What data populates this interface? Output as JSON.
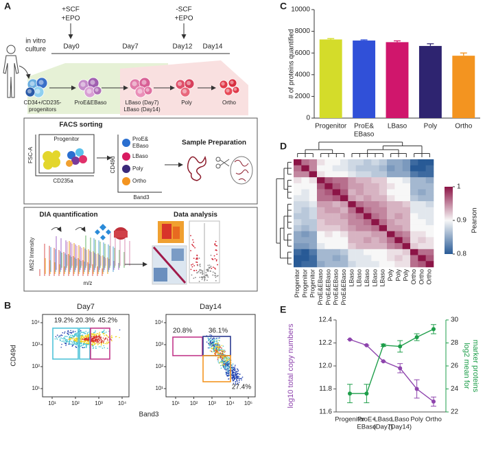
{
  "panel_labels": [
    "A",
    "B",
    "C",
    "D",
    "E"
  ],
  "diagram": {
    "stage1": [
      "+SCF",
      "+EPO"
    ],
    "stage2": [
      "-SCF",
      "+EPO"
    ],
    "culture": [
      "in vitro",
      "culture"
    ],
    "days": [
      "Day0",
      "Day7",
      "Day12",
      "Day14"
    ],
    "cells": {
      "progenitor": [
        "CD34+/CD235-",
        "progenitors"
      ],
      "proe": "ProE&EBaso",
      "lbaso": [
        "LBaso (Day7)",
        "LBaso (Day14)"
      ],
      "poly": "Poly",
      "ortho": "Ortho"
    },
    "facs": {
      "title": "FACS sorting",
      "gate": "Progenitor",
      "x_axis": "CD235a",
      "y_axis": "FSC-A",
      "sorted_x": "Band3",
      "sorted_y": "CD49d",
      "populations": [
        "ProE&",
        "EBaso",
        "LBaso",
        "Poly",
        "Ortho"
      ]
    },
    "prep": "Sample Preparation",
    "dia": {
      "title": "DIA quantification",
      "y_axis": "MS2 Intensity",
      "x_axis": "m/z"
    },
    "analysis": "Data analysis"
  },
  "flow": {
    "y_axis": "CD49d",
    "x_axis": "Band3",
    "panels": [
      {
        "title": "Day7",
        "xticks": [
          "10¹",
          "10²",
          "10³",
          "10⁴"
        ],
        "yticks": [
          "10¹",
          "10²",
          "10³",
          "10⁴"
        ],
        "gates": [
          "19.2%",
          "20.3%",
          "45.2%"
        ]
      },
      {
        "title": "Day14",
        "xticks": [
          "10¹",
          "10²",
          "10³",
          "10⁴",
          "10⁵"
        ],
        "yticks": [
          "10¹",
          "10²",
          "10³",
          "10⁴"
        ],
        "gates": [
          "20.8%",
          "36.1%",
          "27.4%"
        ]
      }
    ]
  },
  "chart_data": [
    {
      "type": "bar",
      "ylabel": "# of proteins quantified",
      "categories": [
        [
          "Progenitor"
        ],
        [
          "ProE&",
          "EBaso"
        ],
        [
          "LBaso"
        ],
        [
          "Poly"
        ],
        [
          "Ortho"
        ]
      ],
      "values": [
        7250,
        7150,
        7000,
        6650,
        5750
      ],
      "errors": [
        80,
        60,
        120,
        200,
        250
      ],
      "colors": [
        "#d4dc2a",
        "#3050d8",
        "#d0166c",
        "#2e2470",
        "#f39420"
      ],
      "ylim": [
        0,
        10000
      ],
      "yticks": [
        0,
        2000,
        4000,
        6000,
        8000,
        10000
      ]
    },
    {
      "type": "heatmap",
      "colorbar_label": "Pearson",
      "labels": [
        "Progenitor",
        "Progenitor",
        "Progenitor",
        "ProE&EBaso",
        "ProE&EBaso",
        "ProE&EBaso",
        "ProE&EBaso",
        "LBaso",
        "LBaso",
        "LBaso",
        "LBaso",
        "LBaso",
        "Poly",
        "Poly",
        "Poly",
        "Ortho",
        "Ortho",
        "Ortho"
      ],
      "clim": [
        0.8,
        1
      ],
      "cticks": [
        0.8,
        0.9,
        1
      ],
      "values": [
        [
          1,
          0.96,
          0.95,
          0.91,
          0.9,
          0.9,
          0.89,
          0.88,
          0.88,
          0.87,
          0.88,
          0.87,
          0.85,
          0.85,
          0.84,
          0.81,
          0.8,
          0.8
        ],
        [
          0.96,
          1,
          0.95,
          0.9,
          0.9,
          0.89,
          0.89,
          0.88,
          0.87,
          0.87,
          0.87,
          0.86,
          0.84,
          0.85,
          0.84,
          0.8,
          0.8,
          0.81
        ],
        [
          0.95,
          0.95,
          1,
          0.91,
          0.9,
          0.9,
          0.9,
          0.89,
          0.88,
          0.88,
          0.87,
          0.87,
          0.85,
          0.85,
          0.85,
          0.82,
          0.81,
          0.81
        ],
        [
          0.91,
          0.9,
          0.91,
          1,
          0.97,
          0.96,
          0.96,
          0.94,
          0.93,
          0.93,
          0.92,
          0.92,
          0.9,
          0.9,
          0.89,
          0.86,
          0.86,
          0.85
        ],
        [
          0.9,
          0.9,
          0.9,
          0.97,
          1,
          0.97,
          0.96,
          0.94,
          0.94,
          0.93,
          0.93,
          0.92,
          0.91,
          0.9,
          0.9,
          0.86,
          0.86,
          0.86
        ],
        [
          0.9,
          0.89,
          0.9,
          0.96,
          0.97,
          1,
          0.97,
          0.93,
          0.94,
          0.93,
          0.93,
          0.92,
          0.9,
          0.9,
          0.9,
          0.86,
          0.85,
          0.86
        ],
        [
          0.89,
          0.89,
          0.9,
          0.96,
          0.96,
          0.97,
          1,
          0.94,
          0.93,
          0.94,
          0.93,
          0.93,
          0.91,
          0.9,
          0.9,
          0.87,
          0.86,
          0.86
        ],
        [
          0.88,
          0.88,
          0.89,
          0.94,
          0.94,
          0.93,
          0.94,
          1,
          0.96,
          0.95,
          0.95,
          0.94,
          0.93,
          0.93,
          0.92,
          0.89,
          0.89,
          0.88
        ],
        [
          0.88,
          0.87,
          0.88,
          0.93,
          0.94,
          0.94,
          0.93,
          0.96,
          1,
          0.96,
          0.95,
          0.95,
          0.93,
          0.93,
          0.93,
          0.89,
          0.89,
          0.89
        ],
        [
          0.87,
          0.87,
          0.88,
          0.93,
          0.93,
          0.93,
          0.94,
          0.95,
          0.96,
          1,
          0.96,
          0.95,
          0.93,
          0.94,
          0.93,
          0.9,
          0.89,
          0.89
        ],
        [
          0.88,
          0.87,
          0.87,
          0.92,
          0.93,
          0.93,
          0.93,
          0.95,
          0.95,
          0.96,
          1,
          0.96,
          0.94,
          0.93,
          0.93,
          0.9,
          0.9,
          0.89
        ],
        [
          0.87,
          0.86,
          0.87,
          0.92,
          0.92,
          0.92,
          0.93,
          0.94,
          0.95,
          0.95,
          0.96,
          1,
          0.94,
          0.94,
          0.93,
          0.9,
          0.9,
          0.9
        ],
        [
          0.85,
          0.84,
          0.85,
          0.9,
          0.91,
          0.9,
          0.91,
          0.93,
          0.93,
          0.93,
          0.94,
          0.94,
          1,
          0.96,
          0.95,
          0.91,
          0.91,
          0.9
        ],
        [
          0.85,
          0.85,
          0.85,
          0.9,
          0.9,
          0.9,
          0.9,
          0.93,
          0.93,
          0.94,
          0.93,
          0.94,
          0.96,
          1,
          0.96,
          0.91,
          0.92,
          0.91
        ],
        [
          0.84,
          0.84,
          0.85,
          0.89,
          0.9,
          0.9,
          0.9,
          0.92,
          0.93,
          0.93,
          0.93,
          0.93,
          0.95,
          0.96,
          1,
          0.92,
          0.91,
          0.91
        ],
        [
          0.81,
          0.8,
          0.82,
          0.86,
          0.86,
          0.86,
          0.87,
          0.89,
          0.89,
          0.9,
          0.9,
          0.9,
          0.91,
          0.91,
          0.92,
          1,
          0.96,
          0.96
        ],
        [
          0.8,
          0.8,
          0.81,
          0.86,
          0.86,
          0.85,
          0.86,
          0.89,
          0.89,
          0.89,
          0.9,
          0.9,
          0.91,
          0.92,
          0.91,
          0.96,
          1,
          0.97
        ],
        [
          0.8,
          0.81,
          0.81,
          0.85,
          0.86,
          0.86,
          0.86,
          0.88,
          0.89,
          0.89,
          0.89,
          0.9,
          0.9,
          0.91,
          0.91,
          0.96,
          0.97,
          1
        ]
      ]
    },
    {
      "type": "line",
      "ylabel": "log10  total copy numbers",
      "y2label": [
        "log2 mean for",
        "marker proteins"
      ],
      "categories": [
        [
          "Progenitor"
        ],
        [
          "ProE+",
          "EBaso"
        ],
        [
          "LBaso",
          "(Day7)"
        ],
        [
          "LBaso",
          "(Day14)"
        ],
        [
          "Poly"
        ],
        [
          "Ortho"
        ]
      ],
      "series": [
        {
          "color": "#8e44ad",
          "values": [
            12.23,
            12.18,
            12.04,
            11.98,
            11.8,
            11.69
          ],
          "errors": [
            0,
            0,
            0,
            0.04,
            0.08,
            0.04
          ]
        },
        {
          "color": "#1e9e4a",
          "axis": "y2",
          "values": [
            23.6,
            23.6,
            27.8,
            27.7,
            28.5,
            29.2
          ],
          "errors": [
            0.8,
            0.8,
            0.1,
            0.5,
            0.3,
            0.4
          ]
        }
      ],
      "ylim": [
        11.6,
        12.4
      ],
      "yticks": [
        11.6,
        11.8,
        {
          "value": 12,
          "label": "12.0"
        },
        12.2,
        12.4
      ],
      "y2lim": [
        22,
        30
      ],
      "y2ticks": [
        22,
        24,
        26,
        28,
        30
      ]
    }
  ]
}
